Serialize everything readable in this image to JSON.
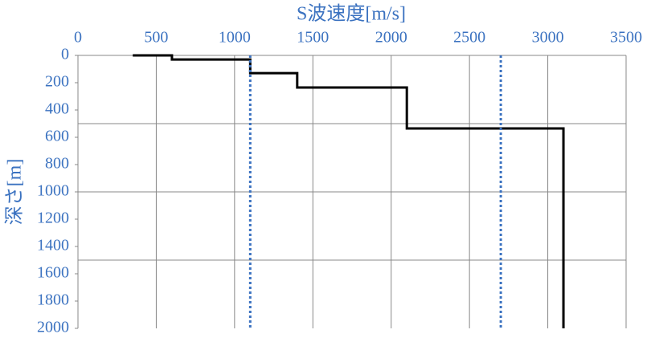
{
  "chart_data": {
    "type": "line",
    "x_label": "S波速度[m/s]",
    "y_label": "深さ[m]",
    "xlim": [
      0,
      3500
    ],
    "xticks": [
      0,
      500,
      1000,
      1500,
      2000,
      2500,
      3000,
      3500
    ],
    "ylim": [
      0,
      2000
    ],
    "yticks": [
      0,
      200,
      400,
      600,
      800,
      1000,
      1200,
      1400,
      1600,
      1800,
      2000
    ],
    "y_inverted": true,
    "x_axis_position": "top",
    "x_grid": true,
    "y_gridlines": [
      500,
      1000,
      1500
    ],
    "series": [
      {
        "color": "#000000",
        "style": "solid",
        "x": [
          350,
          600,
          600,
          1100,
          1100,
          1400,
          1400,
          2100,
          2100,
          3100,
          3100
        ],
        "y": [
          0,
          0,
          30,
          30,
          130,
          130,
          235,
          235,
          535,
          535,
          2000
        ]
      },
      {
        "color": "#3b72c0",
        "style": "dotted",
        "x": [
          1100,
          1100
        ],
        "y": [
          0,
          2000
        ]
      },
      {
        "color": "#3b72c0",
        "style": "dotted",
        "x": [
          2700,
          2700
        ],
        "y": [
          0,
          2000
        ]
      }
    ]
  }
}
